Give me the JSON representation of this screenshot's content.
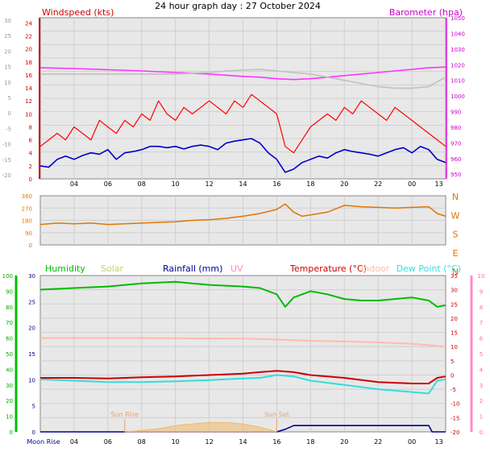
{
  "title": "24 hour graph day : 27 October 2024",
  "chart_data": [
    {
      "type": "line",
      "panel": "wind-baro",
      "labels": {
        "left": "Windspeed (kts)",
        "right": "Barometer (hpa)"
      },
      "left_axis_far": {
        "ticks": [
          "30",
          "25",
          "20",
          "15",
          "10",
          "5",
          "0",
          "-5",
          "-10",
          "-15",
          "-20"
        ]
      },
      "left_axis_near": {
        "ticks": [
          "24",
          "22",
          "20",
          "18",
          "16",
          "14",
          "12",
          "10",
          "8",
          "6",
          "4",
          "2",
          "0"
        ],
        "ylim": [
          0,
          24.8
        ]
      },
      "right_axis": {
        "ticks": [
          "1050",
          "1040",
          "1030",
          "1020",
          "1010",
          "1000",
          "990",
          "980",
          "970",
          "960",
          "950"
        ],
        "ylim": [
          947,
          1050
        ]
      },
      "x_ticks": [
        "04",
        "06",
        "08",
        "10",
        "12",
        "14",
        "16",
        "18",
        "20",
        "22",
        "00",
        "13"
      ],
      "series": [
        {
          "key": "gust",
          "color": "#ff0000",
          "x": [
            2,
            2.5,
            3,
            3.5,
            4,
            4.5,
            5,
            5.5,
            6,
            6.5,
            7,
            7.5,
            8,
            8.5,
            9,
            9.5,
            10,
            10.5,
            11,
            11.5,
            12,
            12.5,
            13,
            13.5,
            14,
            14.5,
            15,
            15.5,
            16,
            16.5,
            17,
            17.5,
            18,
            18.5,
            19,
            19.5,
            20,
            20.5,
            21,
            21.5,
            22,
            22.5,
            23,
            23.5,
            24,
            24.5,
            25,
            25.5,
            26
          ],
          "values": [
            5,
            6,
            7,
            6,
            8,
            7,
            6,
            9,
            8,
            7,
            9,
            8,
            10,
            9,
            12,
            10,
            9,
            11,
            10,
            11,
            12,
            11,
            10,
            12,
            11,
            13,
            12,
            11,
            10,
            5,
            4,
            6,
            8,
            9,
            10,
            9,
            11,
            10,
            12,
            11,
            10,
            9,
            11,
            10,
            9,
            8,
            7,
            6,
            5
          ]
        },
        {
          "key": "average",
          "color": "#0000cc",
          "x": [
            2,
            2.5,
            3,
            3.5,
            4,
            4.5,
            5,
            5.5,
            6,
            6.5,
            7,
            7.5,
            8,
            8.5,
            9,
            9.5,
            10,
            10.5,
            11,
            11.5,
            12,
            12.5,
            13,
            13.5,
            14,
            14.5,
            15,
            15.5,
            16,
            16.5,
            17,
            17.5,
            18,
            18.5,
            19,
            19.5,
            20,
            20.5,
            21,
            21.5,
            22,
            22.5,
            23,
            23.5,
            24,
            24.5,
            25,
            25.5,
            26
          ],
          "values": [
            2,
            1.8,
            3,
            3.5,
            3,
            3.6,
            4,
            3.8,
            4.5,
            3,
            4,
            4.2,
            4.5,
            5,
            5,
            4.8,
            5,
            4.6,
            5,
            5.2,
            5,
            4.5,
            5.5,
            5.8,
            6,
            6.2,
            5.5,
            4,
            3,
            1,
            1.5,
            2.5,
            3,
            3.5,
            3.2,
            4,
            4.5,
            4.2,
            4,
            3.8,
            3.5,
            4,
            4.5,
            4.8,
            4,
            5,
            4.5,
            3,
            2.5
          ]
        },
        {
          "key": "barometer",
          "color": "#ff33ff",
          "x": [
            2,
            4,
            6,
            8,
            10,
            12,
            14,
            15,
            16,
            17,
            18,
            19,
            20,
            21,
            22,
            23,
            24,
            25,
            26
          ],
          "values": [
            1018,
            1017.5,
            1016.8,
            1016,
            1015,
            1014,
            1012.5,
            1012,
            1011,
            1010.5,
            1011,
            1012,
            1013,
            1014,
            1015,
            1016,
            1017,
            1018,
            1018.5
          ]
        },
        {
          "key": "barometer-grey",
          "color": "#c0c0c0",
          "x": [
            2,
            4,
            6,
            8,
            10,
            12,
            13,
            14,
            15,
            16,
            17,
            18,
            19,
            20,
            21,
            22,
            23,
            24,
            25,
            26
          ],
          "values": [
            1014,
            1014,
            1014,
            1014,
            1014,
            1015,
            1016,
            1016.5,
            1017,
            1016,
            1015,
            1014,
            1012,
            1010,
            1008,
            1006,
            1005,
            1005,
            1006,
            1012
          ]
        }
      ]
    },
    {
      "type": "line",
      "panel": "direction",
      "left_axis": {
        "ticks": [
          "360",
          "270",
          "180",
          "90",
          "0"
        ],
        "ylim": [
          0,
          360
        ]
      },
      "right_axis": {
        "ticks": [
          "N",
          "W",
          "S",
          "E",
          "N"
        ]
      },
      "series": [
        {
          "key": "direction",
          "color": "#dd7700",
          "x": [
            2,
            3,
            4,
            5,
            6,
            7,
            8,
            9,
            10,
            11,
            12,
            13,
            14,
            15,
            16,
            16.5,
            17,
            17.5,
            18,
            18.5,
            19,
            20,
            21,
            22,
            23,
            24,
            25,
            25.5,
            26
          ],
          "values": [
            150,
            160,
            155,
            160,
            150,
            155,
            160,
            165,
            170,
            180,
            185,
            195,
            210,
            230,
            260,
            300,
            240,
            210,
            220,
            230,
            240,
            290,
            280,
            275,
            270,
            275,
            280,
            230,
            210
          ]
        }
      ]
    },
    {
      "type": "line",
      "panel": "temp-hum",
      "labels": {
        "humidity": "Humidity",
        "solar": "Solar",
        "rainfall": "Rainfall (mm)",
        "uv": "UV",
        "temperature": "Temperature (°C)",
        "indoor": "Indoor",
        "dewpoint": "Dew Point (°C)"
      },
      "colors": {
        "humidity": "#00bb00",
        "solar": "#cccc66",
        "rainfall": "#000099",
        "uv": "#ff88cc",
        "temperature": "#cc0000",
        "indoor": "#ffbbaa",
        "dewpoint": "#33dddd"
      },
      "humidity_axis": {
        "ticks": [
          "100",
          "90",
          "80",
          "70",
          "60",
          "50",
          "40",
          "30",
          "20",
          "10",
          "0"
        ],
        "ylim": [
          0,
          100
        ]
      },
      "rain_axis": {
        "ticks": [
          "30",
          "25",
          "20",
          "15",
          "10",
          "5",
          "0"
        ],
        "ylim": [
          0,
          30
        ]
      },
      "temp_axis": {
        "ticks": [
          "35",
          "30",
          "25",
          "20",
          "15",
          "10",
          "5",
          "0",
          "-5",
          "-10",
          "-15",
          "-20"
        ],
        "ylim": [
          -20,
          35
        ]
      },
      "uv_axis": {
        "ticks": [
          "10",
          "9",
          "8",
          "7",
          "6",
          "5",
          "4",
          "3",
          "2",
          "1",
          "0"
        ],
        "ylim": [
          0,
          10
        ]
      },
      "series": [
        {
          "key": "humidity",
          "axis": "humidity",
          "x": [
            2,
            4,
            6,
            8,
            10,
            11,
            12,
            14,
            15,
            16,
            16.5,
            17,
            18,
            19,
            20,
            21,
            22,
            23,
            24,
            25,
            25.5,
            26
          ],
          "values": [
            91,
            92,
            93,
            95,
            96,
            95,
            94,
            93,
            92,
            88,
            80,
            86,
            90,
            88,
            85,
            84,
            84,
            85,
            86,
            84,
            80,
            81
          ]
        },
        {
          "key": "indoor",
          "axis": "temp",
          "x": [
            2,
            8,
            14,
            16,
            18,
            20,
            22,
            24,
            25,
            26
          ],
          "values": [
            13,
            13,
            12.8,
            12.5,
            12,
            11.8,
            11.5,
            11,
            10.5,
            10
          ]
        },
        {
          "key": "temperature",
          "axis": "temp",
          "x": [
            2,
            4,
            6,
            8,
            10,
            12,
            14,
            15,
            16,
            17,
            18,
            20,
            22,
            24,
            25,
            25.5,
            26
          ],
          "values": [
            -1,
            -1,
            -1.2,
            -0.8,
            -0.5,
            0,
            0.5,
            1,
            1.5,
            1,
            0,
            -1,
            -2.5,
            -3,
            -3,
            -1,
            -0.5
          ]
        },
        {
          "key": "dewpoint",
          "axis": "temp",
          "x": [
            2,
            4,
            6,
            8,
            10,
            12,
            14,
            15,
            16,
            17,
            18,
            20,
            22,
            24,
            25,
            25.5,
            26
          ],
          "values": [
            -1.5,
            -2,
            -2.5,
            -2.5,
            -2.2,
            -1.8,
            -1.2,
            -1,
            0,
            -0.5,
            -2,
            -3.5,
            -5,
            -6,
            -6.5,
            -2,
            -1.5
          ]
        },
        {
          "key": "rainfall",
          "axis": "rain",
          "x": [
            2,
            16,
            16.5,
            17,
            20,
            25,
            25.2,
            26
          ],
          "values": [
            0,
            0,
            0.5,
            1.2,
            1.2,
            1.2,
            0,
            0
          ]
        },
        {
          "key": "solar",
          "axis": "humidity",
          "x": [
            7,
            8,
            9,
            10,
            11,
            12,
            13,
            14,
            15,
            16
          ],
          "values": [
            0,
            1,
            2,
            4,
            5,
            6,
            6,
            5,
            3,
            0
          ]
        }
      ],
      "annotations": [
        {
          "text": "Sun Rise",
          "x": 7
        },
        {
          "text": "Sun Set",
          "x": 16
        }
      ],
      "x_ticks": [
        "04",
        "06",
        "08",
        "10",
        "12",
        "14",
        "16",
        "18",
        "20",
        "22",
        "00",
        "13"
      ],
      "x_first_label": "Moon Rise"
    }
  ]
}
